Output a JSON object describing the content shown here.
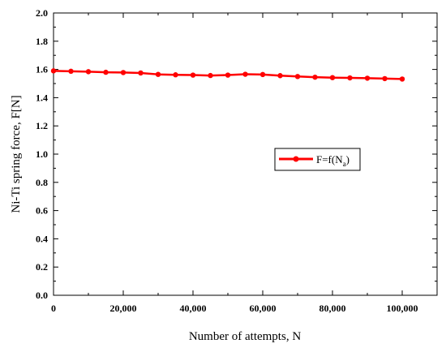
{
  "chart_data": {
    "type": "line",
    "title": "",
    "xlabel": "Number of attempts, N",
    "ylabel": "Ni-Ti spring force, F[N]",
    "xlim": [
      0,
      110000
    ],
    "ylim": [
      0,
      2.0
    ],
    "x_ticks": [
      0,
      20000,
      40000,
      60000,
      80000,
      100000
    ],
    "x_tick_labels": [
      "0",
      "20,000",
      "40,000",
      "60,000",
      "80,000",
      "100,000"
    ],
    "y_ticks": [
      0,
      0.2,
      0.4,
      0.6,
      0.8,
      1.0,
      1.2,
      1.4,
      1.6,
      1.8,
      2.0
    ],
    "y_tick_labels": [
      "0.0",
      "0.2",
      "0.4",
      "0.6",
      "0.8",
      "1.0",
      "1.2",
      "1.4",
      "1.6",
      "1.8",
      "2.0"
    ],
    "grid": false,
    "legend_position": "center-right",
    "series": [
      {
        "legend_text": "F=f(N",
        "legend_subscript": "a",
        "legend_suffix": ")",
        "color": "#ff0000",
        "x": [
          0,
          5000,
          10000,
          15000,
          20000,
          25000,
          30000,
          35000,
          40000,
          45000,
          50000,
          55000,
          60000,
          65000,
          70000,
          75000,
          80000,
          85000,
          90000,
          95000,
          100000
        ],
        "y": [
          1.59,
          1.587,
          1.584,
          1.58,
          1.578,
          1.575,
          1.565,
          1.562,
          1.56,
          1.557,
          1.56,
          1.566,
          1.564,
          1.556,
          1.55,
          1.545,
          1.542,
          1.54,
          1.538,
          1.535,
          1.532
        ]
      }
    ]
  }
}
